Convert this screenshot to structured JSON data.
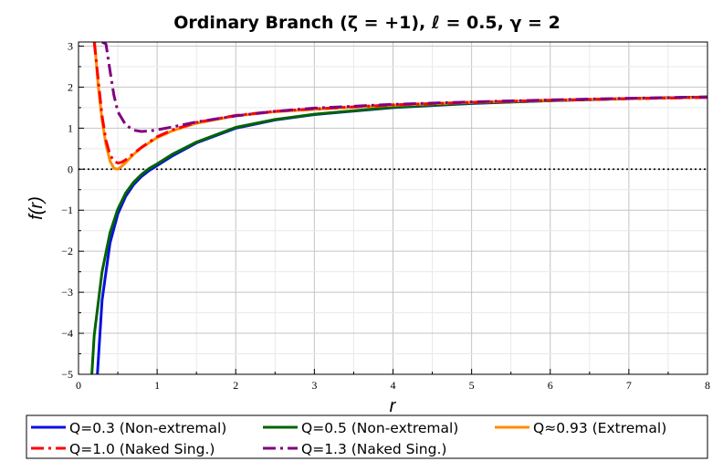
{
  "chart_data": {
    "type": "line",
    "title": "Ordinary Branch (ζ = +1), ℓ = 0.5, γ = 2",
    "xlabel": "r",
    "ylabel": "f(r)",
    "xlim": [
      0,
      8
    ],
    "ylim": [
      -5,
      3.1
    ],
    "x_ticks": [
      "0",
      "1",
      "2",
      "3",
      "4",
      "5",
      "6",
      "7",
      "8"
    ],
    "y_ticks": [
      "−5",
      "−4",
      "−3",
      "−2",
      "−1",
      "0",
      "1",
      "2",
      "3"
    ],
    "grid": true,
    "legend_position": "bottom",
    "reference_line": {
      "y": 0,
      "style": "dotted",
      "color": "#000000"
    },
    "series": [
      {
        "name": "Q=0.3 (Non-extremal)",
        "color": "#0a10e0",
        "dash": "solid",
        "x": [
          0.24,
          0.3,
          0.4,
          0.5,
          0.6,
          0.7,
          0.8,
          0.9,
          1.0,
          1.2,
          1.5,
          2.0,
          2.5,
          3.0,
          4.0,
          5.0,
          6.0,
          7.0,
          8.0
        ],
        "y": [
          -5.0,
          -3.2,
          -1.8,
          -1.09,
          -0.66,
          -0.38,
          -0.18,
          -0.03,
          0.09,
          0.33,
          0.64,
          1.0,
          1.2,
          1.33,
          1.5,
          1.6,
          1.67,
          1.72,
          1.76
        ]
      },
      {
        "name": "Q=0.5 (Non-extremal)",
        "color": "#006400",
        "dash": "solid",
        "x": [
          0.17,
          0.2,
          0.3,
          0.4,
          0.5,
          0.6,
          0.7,
          0.8,
          0.9,
          1.0,
          1.2,
          1.5,
          2.0,
          2.5,
          3.0,
          4.0,
          5.0,
          6.0,
          7.0,
          8.0
        ],
        "y": [
          -5.0,
          -4.05,
          -2.5,
          -1.55,
          -0.97,
          -0.58,
          -0.32,
          -0.13,
          0.02,
          0.13,
          0.37,
          0.66,
          1.02,
          1.21,
          1.34,
          1.51,
          1.61,
          1.67,
          1.72,
          1.76
        ]
      },
      {
        "name": "Q≈0.93 (Extremal)",
        "color": "#ff8c00",
        "dash": "solid",
        "x": [
          0.205,
          0.25,
          0.3,
          0.35,
          0.4,
          0.45,
          0.5,
          0.55,
          0.6,
          0.7,
          0.8,
          1.0,
          1.2,
          1.5,
          2.0,
          2.5,
          3.0,
          4.0,
          5.0,
          6.0,
          7.0,
          8.0
        ],
        "y": [
          3.1,
          2.05,
          1.2,
          0.6,
          0.2,
          0.02,
          0.0,
          0.07,
          0.16,
          0.36,
          0.52,
          0.77,
          0.94,
          1.12,
          1.3,
          1.4,
          1.46,
          1.56,
          1.63,
          1.68,
          1.72,
          1.75
        ]
      },
      {
        "name": "Q=1.0 (Naked Sing.)",
        "color": "#ff0000",
        "dash": "dashdot",
        "x": [
          0.2,
          0.25,
          0.3,
          0.35,
          0.4,
          0.45,
          0.5,
          0.55,
          0.6,
          0.7,
          0.8,
          1.0,
          1.2,
          1.5,
          2.0,
          2.5,
          3.0,
          4.0,
          5.0,
          6.0,
          7.0,
          8.0
        ],
        "y": [
          3.1,
          2.2,
          1.3,
          0.7,
          0.35,
          0.2,
          0.15,
          0.17,
          0.23,
          0.38,
          0.53,
          0.79,
          0.96,
          1.14,
          1.31,
          1.41,
          1.47,
          1.57,
          1.63,
          1.68,
          1.72,
          1.75
        ]
      },
      {
        "name": "Q=1.3 (Naked Sing.)",
        "color": "#800080",
        "dash": "dashdot",
        "x": [
          0.3,
          0.35,
          0.4,
          0.45,
          0.5,
          0.6,
          0.7,
          0.8,
          0.9,
          1.0,
          1.2,
          1.5,
          2.0,
          2.5,
          3.0,
          4.0,
          5.0,
          6.0,
          7.0,
          8.0
        ],
        "y": [
          3.1,
          3.05,
          2.4,
          1.8,
          1.4,
          1.08,
          0.95,
          0.92,
          0.93,
          0.96,
          1.03,
          1.15,
          1.3,
          1.41,
          1.49,
          1.58,
          1.64,
          1.69,
          1.73,
          1.76
        ]
      }
    ]
  }
}
